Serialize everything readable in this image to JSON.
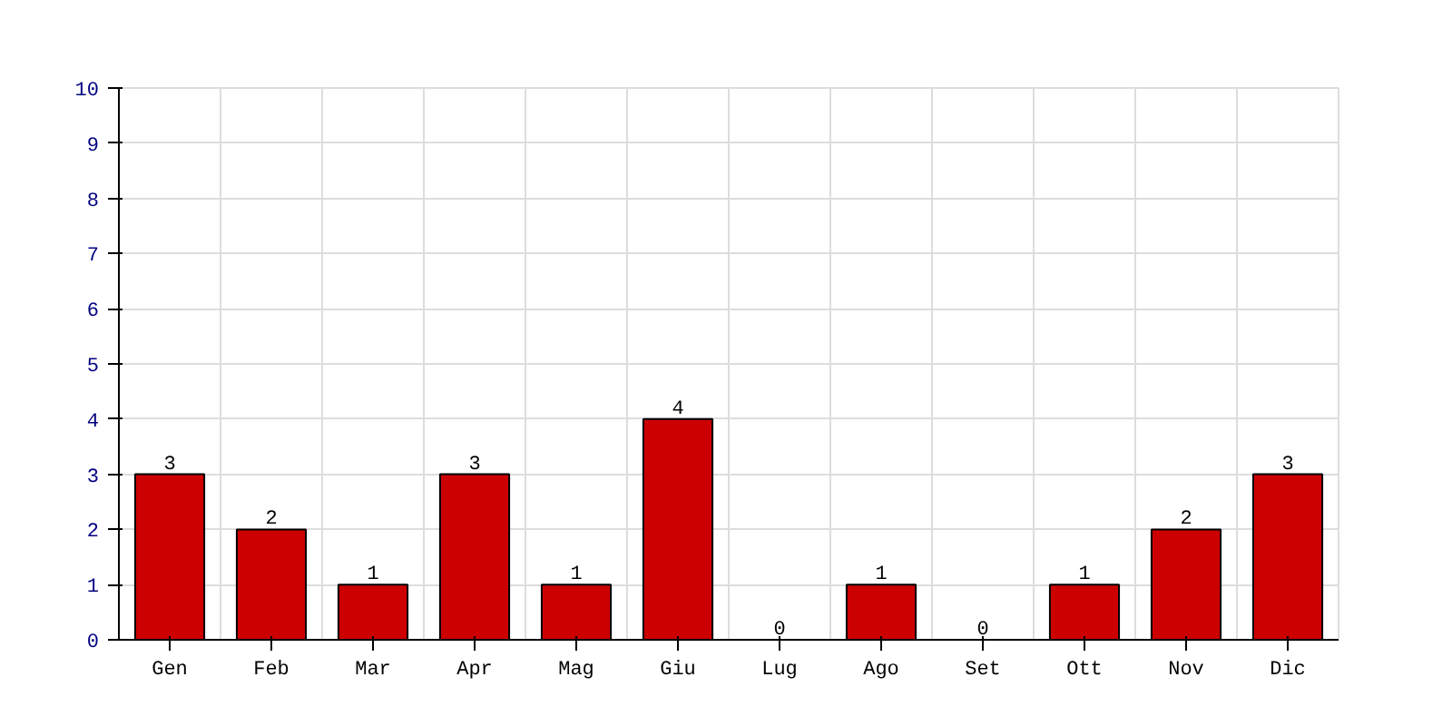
{
  "chart_data": {
    "type": "bar",
    "categories": [
      "Gen",
      "Feb",
      "Mar",
      "Apr",
      "Mag",
      "Giu",
      "Lug",
      "Ago",
      "Set",
      "Ott",
      "Nov",
      "Dic"
    ],
    "values": [
      3,
      2,
      1,
      3,
      1,
      4,
      0,
      1,
      0,
      1,
      2,
      3
    ],
    "color": "#cc0000",
    "ylim": [
      0,
      10
    ],
    "yticks": [
      0,
      1,
      2,
      3,
      4,
      5,
      6,
      7,
      8,
      9,
      10
    ],
    "grid": true,
    "data_labels": true
  }
}
